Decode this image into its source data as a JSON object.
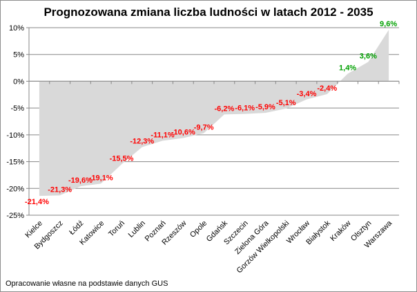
{
  "chart_data": {
    "type": "area",
    "title": "Prognozowana zmiana liczba ludności w latach 2012 - 2035",
    "xlabel": "",
    "ylabel": "",
    "ylim": [
      -25,
      10
    ],
    "yticks": [
      10,
      5,
      0,
      -5,
      -10,
      -15,
      -20,
      -25
    ],
    "ytick_labels": [
      "10%",
      "5%",
      "0%",
      "-5%",
      "-10%",
      "-15%",
      "-20%",
      "-25%"
    ],
    "grid": true,
    "legend": "none",
    "categories": [
      "Kielce",
      "Bydgoszcz",
      "Łódź",
      "Katowice",
      "Toruń",
      "Lublin",
      "Poznań",
      "Rzeszów",
      "Opole",
      "Gdańsk",
      "Szczecin",
      "Zielona Góra",
      "Gorzów Wielkopolski",
      "Wrocław",
      "Białystok",
      "Kraków",
      "Olsztyn",
      "Warszawa"
    ],
    "values": [
      -21.4,
      -21.3,
      -19.6,
      -19.1,
      -15.5,
      -12.3,
      -11.1,
      -10.6,
      -9.7,
      -6.2,
      -6.1,
      -5.9,
      -5.1,
      -3.4,
      -2.4,
      1.4,
      3.6,
      9.6
    ],
    "data_labels": [
      "-21,4%",
      "-21,3%",
      "-19,6%",
      "-19,1%",
      "-15,5%",
      "-12,3%",
      "-11,1%",
      "-10,6%",
      "-9,7%",
      "-6,2%",
      "-6,1%",
      "-5,9%",
      "-5,1%",
      "-3,4%",
      "-2,4%",
      "1,4%",
      "3,6%",
      "9,6%"
    ],
    "colors": {
      "area": "#d9d9d9",
      "negative_label": "#ff0000",
      "positive_label": "#00a000",
      "grid": "#868686"
    }
  },
  "source_note": "Opracowanie własne na podstawie danych GUS"
}
